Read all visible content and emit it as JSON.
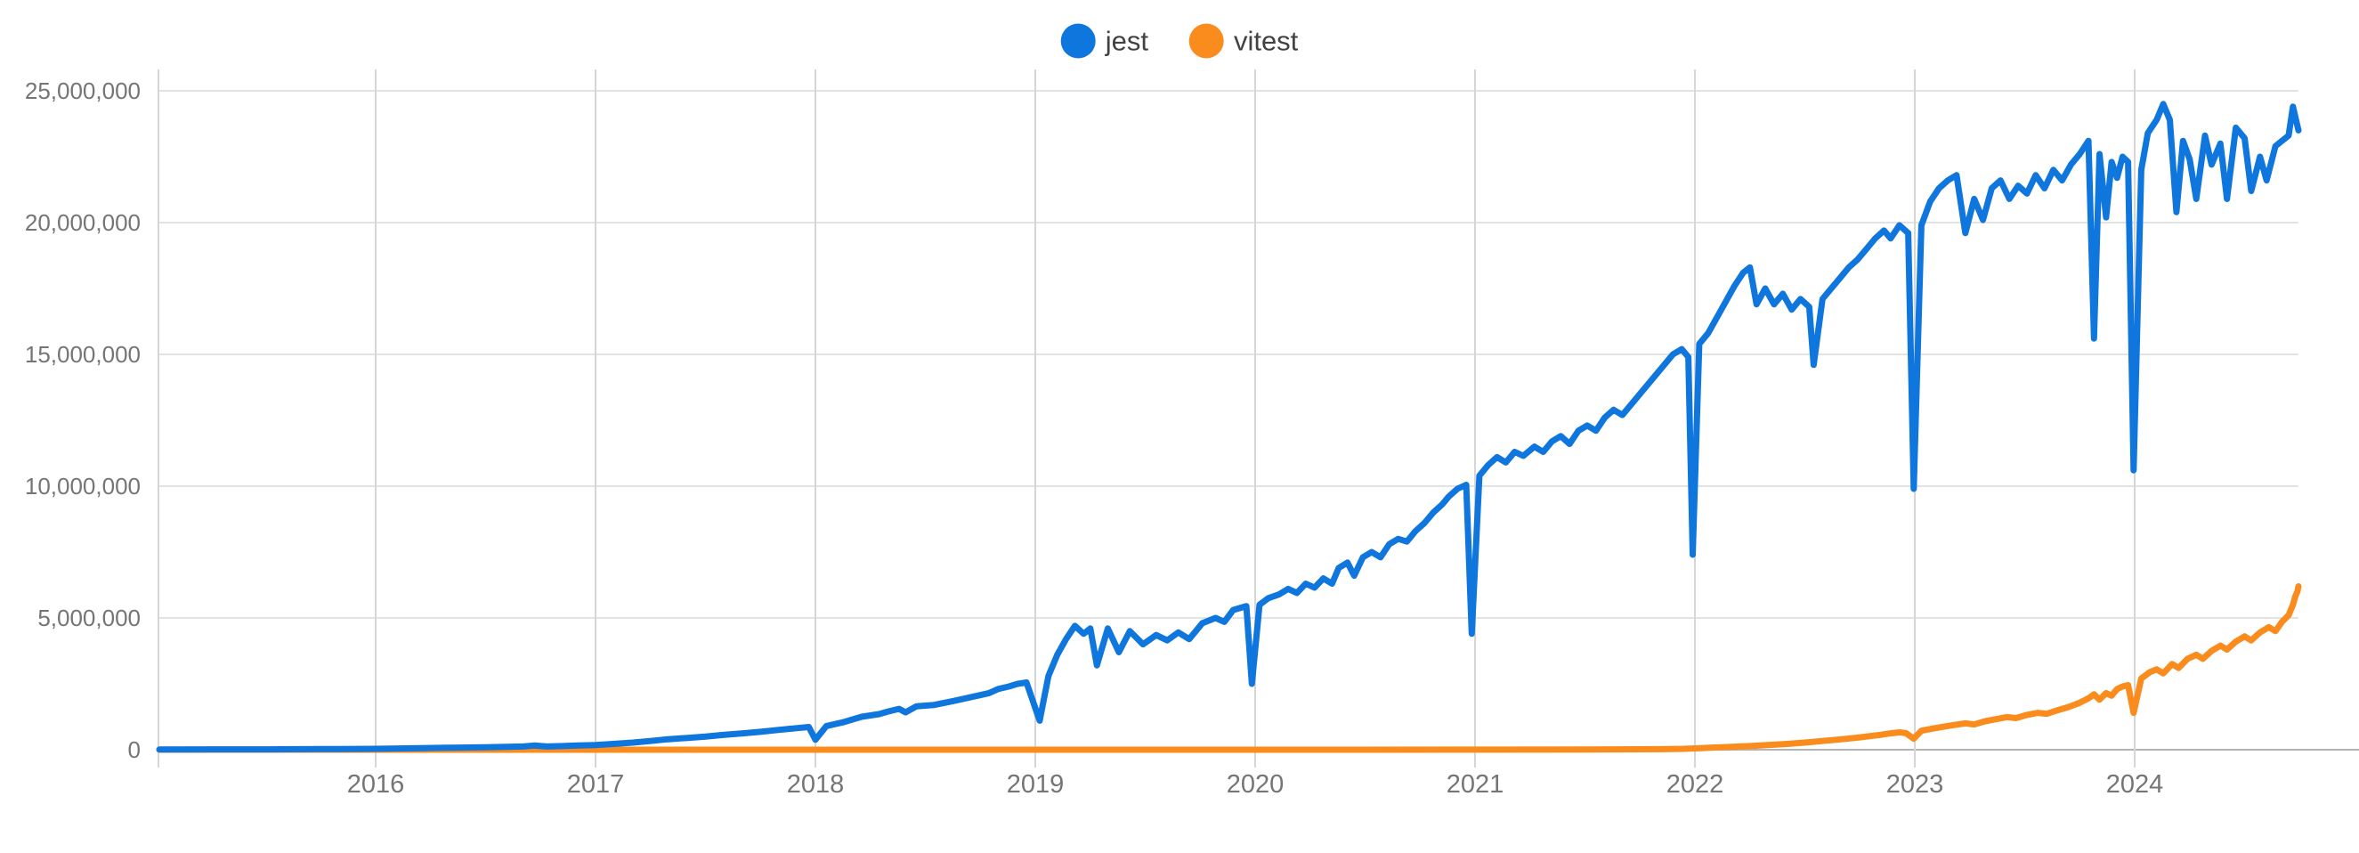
{
  "page": {
    "background": "#ffffff"
  },
  "legend": {
    "position": "top-center",
    "items": [
      {
        "label": "jest",
        "color": "#0e76dd"
      },
      {
        "label": "vitest",
        "color": "#fa8c1e"
      }
    ]
  },
  "colors": {
    "grid_horizontal": "#e3e3e3",
    "grid_vertical": "#d6d6d6",
    "axis_baseline": "#b3b3b3",
    "tick_label": "#757575",
    "legend_text": "#424242"
  },
  "chart_data": {
    "type": "line",
    "title": "",
    "xlabel": "",
    "ylabel": "",
    "grid": true,
    "legend_position": "top-center",
    "x_axis": {
      "tick_values": [
        2016,
        2017,
        2018,
        2019,
        2020,
        2021,
        2022,
        2023,
        2024
      ],
      "tick_labels": [
        "2016",
        "2017",
        "2018",
        "2019",
        "2020",
        "2021",
        "2022",
        "2023",
        "2024"
      ],
      "range": [
        2015.016,
        2024.745
      ]
    },
    "y_axis": {
      "tick_values": [
        0,
        5000000,
        10000000,
        15000000,
        20000000,
        25000000
      ],
      "tick_labels": [
        "0",
        "5,000,000",
        "10,000,000",
        "15,000,000",
        "20,000,000",
        "25,000,000"
      ],
      "range": [
        0,
        25000000
      ]
    },
    "series": [
      {
        "name": "jest",
        "color": "#0e76dd",
        "points": [
          [
            2015.016,
            8000
          ],
          [
            2015.25,
            12000
          ],
          [
            2015.5,
            15000
          ],
          [
            2015.75,
            22000
          ],
          [
            2016.0,
            35000
          ],
          [
            2016.17,
            55000
          ],
          [
            2016.33,
            75000
          ],
          [
            2016.5,
            95000
          ],
          [
            2016.67,
            120000
          ],
          [
            2016.72,
            160000
          ],
          [
            2016.78,
            120000
          ],
          [
            2016.85,
            140000
          ],
          [
            2016.92,
            160000
          ],
          [
            2017.0,
            180000
          ],
          [
            2017.08,
            220000
          ],
          [
            2017.17,
            270000
          ],
          [
            2017.25,
            330000
          ],
          [
            2017.33,
            400000
          ],
          [
            2017.42,
            450000
          ],
          [
            2017.5,
            500000
          ],
          [
            2017.58,
            560000
          ],
          [
            2017.67,
            620000
          ],
          [
            2017.75,
            680000
          ],
          [
            2017.83,
            750000
          ],
          [
            2017.92,
            820000
          ],
          [
            2017.97,
            860000
          ],
          [
            2018.0,
            380000
          ],
          [
            2018.05,
            900000
          ],
          [
            2018.13,
            1050000
          ],
          [
            2018.21,
            1250000
          ],
          [
            2018.29,
            1350000
          ],
          [
            2018.33,
            1450000
          ],
          [
            2018.38,
            1550000
          ],
          [
            2018.41,
            1420000
          ],
          [
            2018.46,
            1650000
          ],
          [
            2018.54,
            1700000
          ],
          [
            2018.63,
            1850000
          ],
          [
            2018.71,
            2000000
          ],
          [
            2018.79,
            2150000
          ],
          [
            2018.83,
            2300000
          ],
          [
            2018.88,
            2400000
          ],
          [
            2018.92,
            2500000
          ],
          [
            2018.96,
            2550000
          ],
          [
            2019.02,
            1100000
          ],
          [
            2019.06,
            2800000
          ],
          [
            2019.1,
            3600000
          ],
          [
            2019.14,
            4200000
          ],
          [
            2019.18,
            4700000
          ],
          [
            2019.22,
            4400000
          ],
          [
            2019.25,
            4600000
          ],
          [
            2019.28,
            3200000
          ],
          [
            2019.33,
            4600000
          ],
          [
            2019.38,
            3700000
          ],
          [
            2019.43,
            4500000
          ],
          [
            2019.49,
            4000000
          ],
          [
            2019.55,
            4350000
          ],
          [
            2019.6,
            4150000
          ],
          [
            2019.65,
            4450000
          ],
          [
            2019.7,
            4200000
          ],
          [
            2019.76,
            4800000
          ],
          [
            2019.82,
            5000000
          ],
          [
            2019.86,
            4850000
          ],
          [
            2019.9,
            5300000
          ],
          [
            2019.96,
            5450000
          ],
          [
            2019.985,
            2500000
          ],
          [
            2020.02,
            5500000
          ],
          [
            2020.06,
            5750000
          ],
          [
            2020.11,
            5900000
          ],
          [
            2020.15,
            6100000
          ],
          [
            2020.19,
            5950000
          ],
          [
            2020.23,
            6300000
          ],
          [
            2020.27,
            6150000
          ],
          [
            2020.31,
            6500000
          ],
          [
            2020.35,
            6300000
          ],
          [
            2020.38,
            6900000
          ],
          [
            2020.42,
            7100000
          ],
          [
            2020.45,
            6600000
          ],
          [
            2020.49,
            7300000
          ],
          [
            2020.53,
            7500000
          ],
          [
            2020.57,
            7300000
          ],
          [
            2020.61,
            7800000
          ],
          [
            2020.65,
            8000000
          ],
          [
            2020.69,
            7900000
          ],
          [
            2020.73,
            8300000
          ],
          [
            2020.77,
            8600000
          ],
          [
            2020.81,
            9000000
          ],
          [
            2020.85,
            9300000
          ],
          [
            2020.88,
            9600000
          ],
          [
            2020.92,
            9900000
          ],
          [
            2020.96,
            10050000
          ],
          [
            2020.985,
            4400000
          ],
          [
            2021.02,
            10400000
          ],
          [
            2021.06,
            10800000
          ],
          [
            2021.1,
            11100000
          ],
          [
            2021.14,
            10900000
          ],
          [
            2021.18,
            11300000
          ],
          [
            2021.22,
            11150000
          ],
          [
            2021.27,
            11500000
          ],
          [
            2021.31,
            11300000
          ],
          [
            2021.35,
            11700000
          ],
          [
            2021.39,
            11900000
          ],
          [
            2021.43,
            11600000
          ],
          [
            2021.47,
            12100000
          ],
          [
            2021.51,
            12300000
          ],
          [
            2021.55,
            12100000
          ],
          [
            2021.59,
            12600000
          ],
          [
            2021.63,
            12900000
          ],
          [
            2021.67,
            12700000
          ],
          [
            2021.71,
            13100000
          ],
          [
            2021.75,
            13500000
          ],
          [
            2021.79,
            13900000
          ],
          [
            2021.83,
            14300000
          ],
          [
            2021.87,
            14700000
          ],
          [
            2021.9,
            15000000
          ],
          [
            2021.94,
            15200000
          ],
          [
            2021.97,
            14900000
          ],
          [
            2021.99,
            7400000
          ],
          [
            2022.02,
            15400000
          ],
          [
            2022.06,
            15800000
          ],
          [
            2022.1,
            16400000
          ],
          [
            2022.14,
            17000000
          ],
          [
            2022.18,
            17600000
          ],
          [
            2022.22,
            18100000
          ],
          [
            2022.25,
            18300000
          ],
          [
            2022.28,
            16900000
          ],
          [
            2022.32,
            17500000
          ],
          [
            2022.36,
            16900000
          ],
          [
            2022.4,
            17300000
          ],
          [
            2022.44,
            16700000
          ],
          [
            2022.48,
            17100000
          ],
          [
            2022.52,
            16800000
          ],
          [
            2022.54,
            14600000
          ],
          [
            2022.58,
            17100000
          ],
          [
            2022.62,
            17500000
          ],
          [
            2022.66,
            17900000
          ],
          [
            2022.7,
            18300000
          ],
          [
            2022.74,
            18600000
          ],
          [
            2022.78,
            19000000
          ],
          [
            2022.82,
            19400000
          ],
          [
            2022.86,
            19700000
          ],
          [
            2022.89,
            19400000
          ],
          [
            2022.93,
            19900000
          ],
          [
            2022.97,
            19600000
          ],
          [
            2022.995,
            9900000
          ],
          [
            2023.03,
            19900000
          ],
          [
            2023.07,
            20800000
          ],
          [
            2023.11,
            21300000
          ],
          [
            2023.15,
            21600000
          ],
          [
            2023.19,
            21800000
          ],
          [
            2023.23,
            19600000
          ],
          [
            2023.27,
            20900000
          ],
          [
            2023.31,
            20100000
          ],
          [
            2023.35,
            21300000
          ],
          [
            2023.39,
            21600000
          ],
          [
            2023.43,
            20900000
          ],
          [
            2023.47,
            21400000
          ],
          [
            2023.51,
            21100000
          ],
          [
            2023.55,
            21800000
          ],
          [
            2023.59,
            21300000
          ],
          [
            2023.63,
            22000000
          ],
          [
            2023.67,
            21600000
          ],
          [
            2023.71,
            22200000
          ],
          [
            2023.75,
            22600000
          ],
          [
            2023.79,
            23100000
          ],
          [
            2023.815,
            15600000
          ],
          [
            2023.84,
            22600000
          ],
          [
            2023.87,
            20200000
          ],
          [
            2023.895,
            22300000
          ],
          [
            2023.92,
            21700000
          ],
          [
            2023.945,
            22500000
          ],
          [
            2023.97,
            22300000
          ],
          [
            2023.995,
            10600000
          ],
          [
            2024.03,
            22000000
          ],
          [
            2024.06,
            23400000
          ],
          [
            2024.1,
            23900000
          ],
          [
            2024.13,
            24500000
          ],
          [
            2024.16,
            23900000
          ],
          [
            2024.19,
            20400000
          ],
          [
            2024.22,
            23100000
          ],
          [
            2024.25,
            22400000
          ],
          [
            2024.28,
            20900000
          ],
          [
            2024.32,
            23300000
          ],
          [
            2024.35,
            22200000
          ],
          [
            2024.39,
            23000000
          ],
          [
            2024.42,
            20900000
          ],
          [
            2024.46,
            23600000
          ],
          [
            2024.5,
            23200000
          ],
          [
            2024.53,
            21200000
          ],
          [
            2024.57,
            22500000
          ],
          [
            2024.6,
            21600000
          ],
          [
            2024.64,
            22900000
          ],
          [
            2024.67,
            23100000
          ],
          [
            2024.7,
            23300000
          ],
          [
            2024.72,
            24400000
          ],
          [
            2024.745,
            23500000
          ]
        ]
      },
      {
        "name": "vitest",
        "color": "#fa8c1e",
        "points": [
          [
            2015.016,
            0
          ],
          [
            2016.0,
            0
          ],
          [
            2017.0,
            0
          ],
          [
            2018.0,
            0
          ],
          [
            2019.0,
            0
          ],
          [
            2020.0,
            0
          ],
          [
            2021.0,
            3000
          ],
          [
            2021.5,
            8000
          ],
          [
            2021.85,
            20000
          ],
          [
            2021.95,
            35000
          ],
          [
            2022.0,
            50000
          ],
          [
            2022.08,
            80000
          ],
          [
            2022.17,
            110000
          ],
          [
            2022.25,
            140000
          ],
          [
            2022.33,
            180000
          ],
          [
            2022.42,
            220000
          ],
          [
            2022.5,
            270000
          ],
          [
            2022.58,
            330000
          ],
          [
            2022.67,
            400000
          ],
          [
            2022.75,
            470000
          ],
          [
            2022.81,
            530000
          ],
          [
            2022.85,
            570000
          ],
          [
            2022.89,
            620000
          ],
          [
            2022.93,
            660000
          ],
          [
            2022.96,
            630000
          ],
          [
            2022.995,
            420000
          ],
          [
            2023.03,
            720000
          ],
          [
            2023.08,
            800000
          ],
          [
            2023.13,
            870000
          ],
          [
            2023.18,
            940000
          ],
          [
            2023.23,
            1000000
          ],
          [
            2023.27,
            960000
          ],
          [
            2023.32,
            1080000
          ],
          [
            2023.37,
            1160000
          ],
          [
            2023.42,
            1240000
          ],
          [
            2023.46,
            1200000
          ],
          [
            2023.51,
            1320000
          ],
          [
            2023.56,
            1400000
          ],
          [
            2023.6,
            1360000
          ],
          [
            2023.65,
            1500000
          ],
          [
            2023.7,
            1620000
          ],
          [
            2023.75,
            1780000
          ],
          [
            2023.79,
            1950000
          ],
          [
            2023.815,
            2100000
          ],
          [
            2023.84,
            1900000
          ],
          [
            2023.87,
            2150000
          ],
          [
            2023.895,
            2050000
          ],
          [
            2023.92,
            2300000
          ],
          [
            2023.945,
            2400000
          ],
          [
            2023.97,
            2450000
          ],
          [
            2023.995,
            1400000
          ],
          [
            2024.03,
            2700000
          ],
          [
            2024.07,
            2950000
          ],
          [
            2024.1,
            3050000
          ],
          [
            2024.13,
            2900000
          ],
          [
            2024.17,
            3250000
          ],
          [
            2024.2,
            3100000
          ],
          [
            2024.24,
            3450000
          ],
          [
            2024.28,
            3600000
          ],
          [
            2024.31,
            3450000
          ],
          [
            2024.35,
            3750000
          ],
          [
            2024.39,
            3950000
          ],
          [
            2024.42,
            3800000
          ],
          [
            2024.46,
            4100000
          ],
          [
            2024.5,
            4300000
          ],
          [
            2024.53,
            4150000
          ],
          [
            2024.57,
            4450000
          ],
          [
            2024.61,
            4650000
          ],
          [
            2024.64,
            4500000
          ],
          [
            2024.67,
            4850000
          ],
          [
            2024.7,
            5100000
          ],
          [
            2024.72,
            5500000
          ],
          [
            2024.73,
            5800000
          ],
          [
            2024.74,
            6000000
          ],
          [
            2024.745,
            6200000
          ]
        ]
      }
    ]
  }
}
